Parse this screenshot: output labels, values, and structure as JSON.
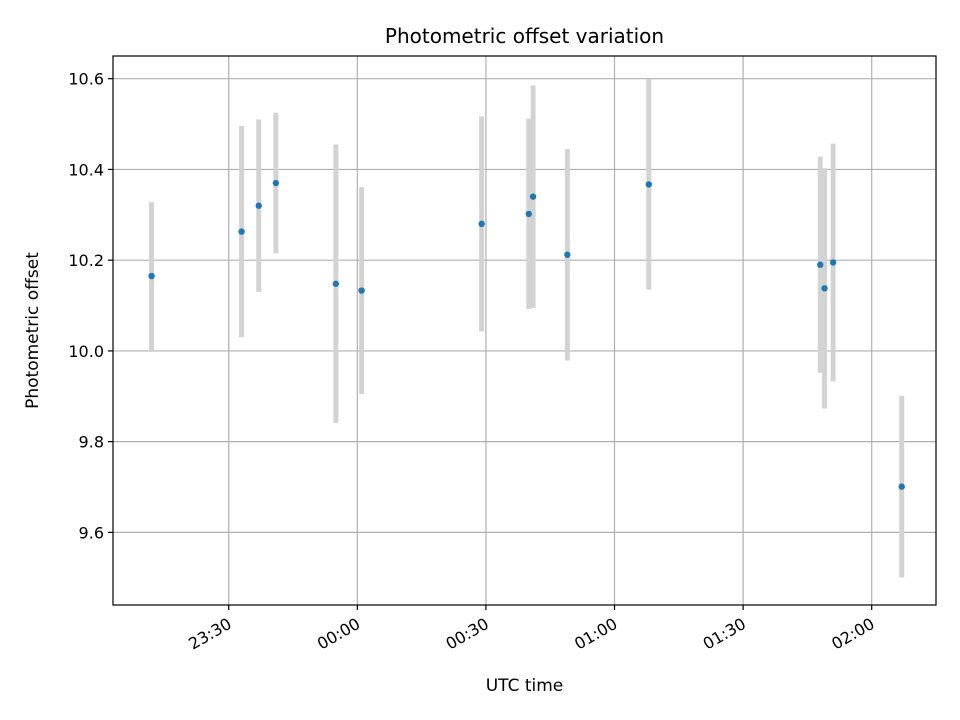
{
  "chart_data": {
    "type": "scatter",
    "title": "Photometric offset variation",
    "xlabel": "UTC time",
    "ylabel": "Photometric offset",
    "x_ticks": [
      "23:30",
      "00:00",
      "00:30",
      "01:00",
      "01:30",
      "02:00"
    ],
    "y_ticks": [
      "9.6",
      "9.8",
      "10.0",
      "10.2",
      "10.4",
      "10.6"
    ],
    "xlim": [
      "23:03",
      "02:15"
    ],
    "ylim": [
      9.44,
      10.65
    ],
    "grid": true,
    "colors": {
      "point": "#1f77b4",
      "errorbar": "#d3d3d3",
      "grid": "#b0b0b0"
    },
    "series": [
      {
        "points": [
          {
            "x": "23:12",
            "y": 10.165,
            "y_err": 0.163
          },
          {
            "x": "23:33",
            "y": 10.263,
            "y_err": 0.233
          },
          {
            "x": "23:37",
            "y": 10.32,
            "y_err": 0.19
          },
          {
            "x": "23:41",
            "y": 10.37,
            "y_err": 0.155
          },
          {
            "x": "23:55",
            "y": 10.148,
            "y_err": 0.307
          },
          {
            "x": "00:01",
            "y": 10.133,
            "y_err": 0.228
          },
          {
            "x": "00:29",
            "y": 10.28,
            "y_err": 0.237
          },
          {
            "x": "00:40",
            "y": 10.302,
            "y_err": 0.21
          },
          {
            "x": "00:41",
            "y": 10.34,
            "y_err": 0.245
          },
          {
            "x": "00:49",
            "y": 10.212,
            "y_err": 0.233
          },
          {
            "x": "01:08",
            "y": 10.367,
            "y_err": 0.232
          },
          {
            "x": "01:48",
            "y": 10.19,
            "y_err": 0.238
          },
          {
            "x": "01:49",
            "y": 10.138,
            "y_err": 0.265
          },
          {
            "x": "01:51",
            "y": 10.195,
            "y_err": 0.262
          },
          {
            "x": "02:07",
            "y": 9.701,
            "y_err": 0.2
          }
        ]
      }
    ]
  }
}
